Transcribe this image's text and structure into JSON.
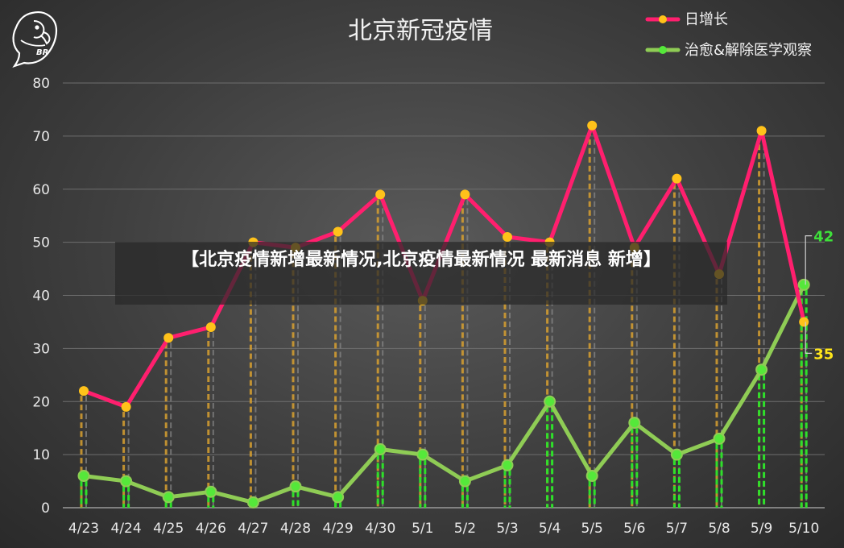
{
  "chart_data": {
    "type": "line",
    "title": "北京新冠疫情",
    "categories": [
      "4/23",
      "4/24",
      "4/25",
      "4/26",
      "4/27",
      "4/28",
      "4/29",
      "4/30",
      "5/1",
      "5/2",
      "5/3",
      "5/4",
      "5/5",
      "5/6",
      "5/7",
      "5/8",
      "5/9",
      "5/10"
    ],
    "series": [
      {
        "name": "日增长",
        "color": "#ff1f6e",
        "marker_color": "#ffc21a",
        "values": [
          22,
          19,
          32,
          34,
          50,
          49,
          52,
          59,
          39,
          59,
          51,
          50,
          72,
          49,
          62,
          44,
          71,
          35
        ]
      },
      {
        "name": "治愈&解除医学观察",
        "color": "#8fcc55",
        "marker_color": "#55e83a",
        "values": [
          6,
          5,
          2,
          3,
          1,
          4,
          2,
          11,
          10,
          5,
          8,
          20,
          6,
          16,
          10,
          13,
          26,
          42
        ]
      }
    ],
    "ylim": [
      0,
      80
    ],
    "yticks": [
      0,
      10,
      20,
      30,
      40,
      50,
      60,
      70,
      80
    ],
    "grid": true,
    "legend_position": "top-right",
    "callouts": [
      {
        "label": "42",
        "color": "#3ee03a"
      },
      {
        "label": "35",
        "color": "#ffe61a"
      }
    ]
  },
  "logo": {
    "text": "BR"
  },
  "banner": {
    "text": "【北京疫情新增最新情况,北京疫情最新情况 最新消息 新增】"
  }
}
